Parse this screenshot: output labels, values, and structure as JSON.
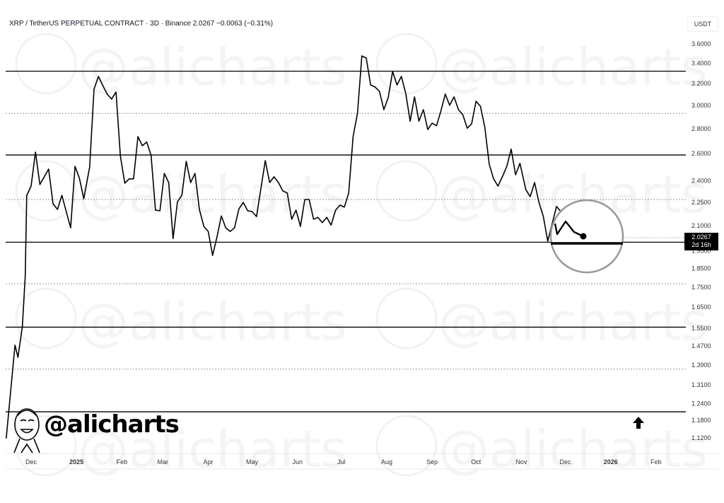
{
  "header": {
    "title": "XRP / TetherUS PERPETUAL CONTRACT · 3D · Binance  2.0267  −0.0063 (−0.31%)",
    "unit": "USDT"
  },
  "price_label": {
    "price": "2.0267",
    "countdown": "2d 16h"
  },
  "brand": {
    "handle": "@alicharts",
    "watermark": "@alicharts"
  },
  "icons": {
    "arrow": "arrow-up-icon",
    "logo": "caricature-face-logo"
  },
  "chart_data": {
    "type": "line",
    "title": "XRP / TetherUS PERPETUAL CONTRACT · 3D · Binance",
    "scale": "log",
    "ylim": [
      1.09,
      3.75
    ],
    "grid": false,
    "line_color": "#000000",
    "y_ticks": [
      "3.6000",
      "3.4000",
      "3.2000",
      "3.0000",
      "2.8000",
      "2.6000",
      "2.4000",
      "2.2500",
      "2.1000",
      "1.9500",
      "1.8500",
      "1.7500",
      "1.6500",
      "1.5500",
      "1.4700",
      "1.3900",
      "1.3100",
      "1.2400",
      "1.1800",
      "1.1200"
    ],
    "x_ticks": [
      {
        "label": "Dec",
        "date": "2024-12-01"
      },
      {
        "label": "2025",
        "date": "2025-01-01"
      },
      {
        "label": "Feb",
        "date": "2025-02-01"
      },
      {
        "label": "Mar",
        "date": "2025-03-01"
      },
      {
        "label": "Apr",
        "date": "2025-04-01"
      },
      {
        "label": "May",
        "date": "2025-05-01"
      },
      {
        "label": "Jun",
        "date": "2025-06-01"
      },
      {
        "label": "Jul",
        "date": "2025-07-01"
      },
      {
        "label": "Aug",
        "date": "2025-08-01"
      },
      {
        "label": "Sep",
        "date": "2025-09-01"
      },
      {
        "label": "Oct",
        "date": "2025-10-01"
      },
      {
        "label": "Nov",
        "date": "2025-11-01"
      },
      {
        "label": "Dec",
        "date": "2025-12-01"
      },
      {
        "label": "2026",
        "date": "2026-01-01"
      },
      {
        "label": "Feb",
        "date": "2026-02-01"
      }
    ],
    "solid_levels": [
      3.32,
      2.59,
      2.0,
      1.555,
      1.21
    ],
    "dotted_levels": [
      2.93,
      2.27,
      1.768,
      1.373
    ],
    "last_price": 2.0267,
    "series": [
      {
        "points": [
          [
            "2024-11-14",
            1.118
          ],
          [
            "2024-11-20",
            1.474
          ],
          [
            "2024-11-22",
            1.422
          ],
          [
            "2024-11-25",
            1.556
          ],
          [
            "2024-11-27",
            1.81
          ],
          [
            "2024-11-28",
            2.298
          ],
          [
            "2024-12-01",
            2.362
          ],
          [
            "2024-12-04",
            2.612
          ],
          [
            "2024-12-07",
            2.373
          ],
          [
            "2024-12-13",
            2.484
          ],
          [
            "2024-12-16",
            2.241
          ],
          [
            "2024-12-19",
            2.204
          ],
          [
            "2024-12-22",
            2.298
          ],
          [
            "2024-12-28",
            2.087
          ],
          [
            "2024-12-31",
            2.504
          ],
          [
            "2025-01-03",
            2.418
          ],
          [
            "2025-01-06",
            2.275
          ],
          [
            "2025-01-10",
            2.499
          ],
          [
            "2025-01-13",
            3.148
          ],
          [
            "2025-01-16",
            3.269
          ],
          [
            "2025-01-19",
            3.181
          ],
          [
            "2025-01-22",
            3.102
          ],
          [
            "2025-01-25",
            3.056
          ],
          [
            "2025-01-28",
            3.121
          ],
          [
            "2025-01-31",
            2.58
          ],
          [
            "2025-02-03",
            2.382
          ],
          [
            "2025-02-06",
            2.413
          ],
          [
            "2025-02-09",
            2.413
          ],
          [
            "2025-02-12",
            2.735
          ],
          [
            "2025-02-15",
            2.662
          ],
          [
            "2025-02-18",
            2.691
          ],
          [
            "2025-02-21",
            2.586
          ],
          [
            "2025-02-24",
            2.199
          ],
          [
            "2025-02-27",
            2.195
          ],
          [
            "2025-03-02",
            2.452
          ],
          [
            "2025-03-05",
            2.387
          ],
          [
            "2025-03-08",
            2.022
          ],
          [
            "2025-03-11",
            2.255
          ],
          [
            "2025-03-14",
            2.298
          ],
          [
            "2025-03-17",
            2.542
          ],
          [
            "2025-03-20",
            2.387
          ],
          [
            "2025-03-23",
            2.452
          ],
          [
            "2025-03-26",
            2.204
          ],
          [
            "2025-03-29",
            2.096
          ],
          [
            "2025-04-01",
            2.065
          ],
          [
            "2025-04-04",
            1.923
          ],
          [
            "2025-04-07",
            2.032
          ],
          [
            "2025-04-10",
            2.162
          ],
          [
            "2025-04-13",
            2.087
          ],
          [
            "2025-04-16",
            2.065
          ],
          [
            "2025-04-19",
            2.087
          ],
          [
            "2025-04-22",
            2.208
          ],
          [
            "2025-04-25",
            2.25
          ],
          [
            "2025-04-28",
            2.195
          ],
          [
            "2025-05-01",
            2.19
          ],
          [
            "2025-05-04",
            2.158
          ],
          [
            "2025-05-10",
            2.547
          ],
          [
            "2025-05-13",
            2.387
          ],
          [
            "2025-05-16",
            2.428
          ],
          [
            "2025-05-19",
            2.387
          ],
          [
            "2025-05-22",
            2.328
          ],
          [
            "2025-05-25",
            2.314
          ],
          [
            "2025-05-28",
            2.141
          ],
          [
            "2025-05-31",
            2.199
          ],
          [
            "2025-06-03",
            2.096
          ],
          [
            "2025-06-06",
            2.27
          ],
          [
            "2025-06-09",
            2.27
          ],
          [
            "2025-06-12",
            2.141
          ],
          [
            "2025-06-15",
            2.153
          ],
          [
            "2025-06-18",
            2.119
          ],
          [
            "2025-06-21",
            2.153
          ],
          [
            "2025-06-24",
            2.104
          ],
          [
            "2025-06-27",
            2.199
          ],
          [
            "2025-06-30",
            2.232
          ],
          [
            "2025-07-03",
            2.219
          ],
          [
            "2025-07-06",
            2.314
          ],
          [
            "2025-07-09",
            2.735
          ],
          [
            "2025-07-12",
            2.93
          ],
          [
            "2025-07-15",
            3.473
          ],
          [
            "2025-07-18",
            3.452
          ],
          [
            "2025-07-21",
            3.187
          ],
          [
            "2025-07-24",
            3.168
          ],
          [
            "2025-07-27",
            3.127
          ],
          [
            "2025-07-30",
            2.962
          ],
          [
            "2025-08-02",
            3.071
          ],
          [
            "2025-08-05",
            3.317
          ],
          [
            "2025-08-08",
            3.187
          ],
          [
            "2025-08-11",
            3.269
          ],
          [
            "2025-08-14",
            3.108
          ],
          [
            "2025-08-17",
            2.863
          ],
          [
            "2025-08-20",
            3.077
          ],
          [
            "2025-08-23",
            2.863
          ],
          [
            "2025-08-26",
            2.962
          ],
          [
            "2025-08-29",
            2.793
          ],
          [
            "2025-09-01",
            2.846
          ],
          [
            "2025-09-04",
            2.824
          ],
          [
            "2025-09-07",
            2.951
          ],
          [
            "2025-09-10",
            3.102
          ],
          [
            "2025-09-13",
            3.001
          ],
          [
            "2025-09-16",
            3.077
          ],
          [
            "2025-09-19",
            2.962
          ],
          [
            "2025-09-22",
            2.918
          ],
          [
            "2025-09-25",
            2.804
          ],
          [
            "2025-09-28",
            2.841
          ],
          [
            "2025-10-01",
            3.037
          ],
          [
            "2025-10-04",
            2.992
          ],
          [
            "2025-10-07",
            2.812
          ],
          [
            "2025-10-10",
            2.522
          ],
          [
            "2025-10-13",
            2.413
          ],
          [
            "2025-10-16",
            2.362
          ],
          [
            "2025-10-19",
            2.428
          ],
          [
            "2025-10-22",
            2.504
          ],
          [
            "2025-10-25",
            2.635
          ],
          [
            "2025-10-28",
            2.442
          ],
          [
            "2025-10-31",
            2.527
          ],
          [
            "2025-11-04",
            2.337
          ],
          [
            "2025-11-07",
            2.289
          ],
          [
            "2025-11-10",
            2.387
          ],
          [
            "2025-11-13",
            2.25
          ],
          [
            "2025-11-16",
            2.158
          ],
          [
            "2025-11-19",
            2.006
          ],
          [
            "2025-11-25",
            2.223
          ],
          [
            "2025-11-28",
            2.19
          ]
        ]
      }
    ]
  }
}
